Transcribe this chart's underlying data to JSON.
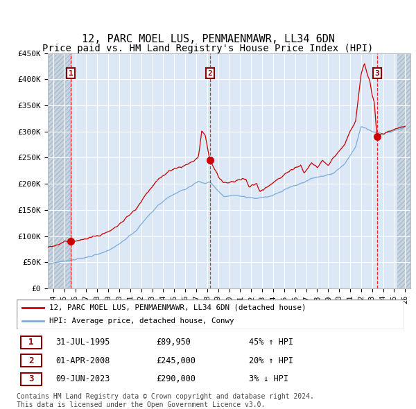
{
  "title": "12, PARC MOEL LUS, PENMAENMAWR, LL34 6DN",
  "subtitle": "Price paid vs. HM Land Registry's House Price Index (HPI)",
  "ylim": [
    0,
    450000
  ],
  "xlim_start": 1993.5,
  "xlim_end": 2026.5,
  "yticks": [
    0,
    50000,
    100000,
    150000,
    200000,
    250000,
    300000,
    350000,
    400000,
    450000
  ],
  "ytick_labels": [
    "£0",
    "£50K",
    "£100K",
    "£150K",
    "£200K",
    "£250K",
    "£300K",
    "£350K",
    "£400K",
    "£450K"
  ],
  "xtick_years": [
    1994,
    1995,
    1996,
    1997,
    1998,
    1999,
    2000,
    2001,
    2002,
    2003,
    2004,
    2005,
    2006,
    2007,
    2008,
    2009,
    2010,
    2011,
    2012,
    2013,
    2014,
    2015,
    2016,
    2017,
    2018,
    2019,
    2020,
    2021,
    2022,
    2023,
    2024,
    2025,
    2026
  ],
  "sale_dates": [
    1995.58,
    2008.25,
    2023.44
  ],
  "sale_prices": [
    89950,
    245000,
    290000
  ],
  "sale_labels": [
    "1",
    "2",
    "3"
  ],
  "sale_info": [
    {
      "label": "1",
      "date": "31-JUL-1995",
      "price": "£89,950",
      "hpi": "45% ↑ HPI"
    },
    {
      "label": "2",
      "date": "01-APR-2008",
      "price": "£245,000",
      "hpi": "20% ↑ HPI"
    },
    {
      "label": "3",
      "date": "09-JUN-2023",
      "price": "£290,000",
      "hpi": "3% ↓ HPI"
    }
  ],
  "legend_entries": [
    "12, PARC MOEL LUS, PENMAENMAWR, LL34 6DN (detached house)",
    "HPI: Average price, detached house, Conwy"
  ],
  "property_line_color": "#cc0000",
  "hpi_line_color": "#7aacdc",
  "plot_bg_color": "#dce8f5",
  "hatch_bg_color": "#c8d4e0",
  "title_fontsize": 11,
  "subtitle_fontsize": 10,
  "footer_text": "Contains HM Land Registry data © Crown copyright and database right 2024.\nThis data is licensed under the Open Government Licence v3.0."
}
